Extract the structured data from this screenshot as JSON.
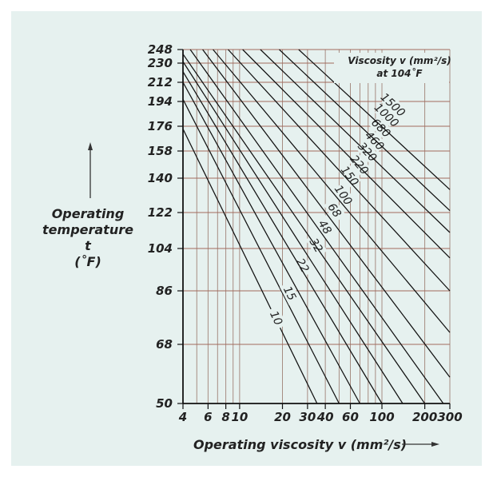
{
  "chart_data": {
    "type": "line",
    "title": "",
    "xlabel": "Operating viscosity v (mm²/s)",
    "ylabel_lines": [
      "Operating",
      "temperature",
      "t",
      "(˚F)"
    ],
    "legend_title_lines": [
      "Viscosity v (mm²/s)",
      "at 104˚F"
    ],
    "x_scale": "log",
    "xlim": [
      4,
      300
    ],
    "ylim": [
      50,
      248
    ],
    "x_ticks": [
      4,
      6,
      8,
      10,
      20,
      30,
      40,
      60,
      100,
      200,
      300
    ],
    "x_tick_labels": [
      "4",
      "6",
      "8",
      "10",
      "20",
      "30",
      "40",
      "60",
      "100",
      "200",
      "300"
    ],
    "y_ticks": [
      50,
      68,
      86,
      104,
      122,
      140,
      158,
      176,
      194,
      212,
      230,
      248
    ],
    "y_tick_labels": [
      "50",
      "68",
      "86",
      "104",
      "122",
      "140",
      "158",
      "176",
      "194",
      "212",
      "230",
      "248"
    ],
    "grid": true,
    "series": [
      {
        "name": "10",
        "points": [
          [
            4,
            174
          ],
          [
            35,
            50
          ]
        ]
      },
      {
        "name": "15",
        "points": [
          [
            4,
            196
          ],
          [
            50,
            50
          ]
        ]
      },
      {
        "name": "22",
        "points": [
          [
            4,
            212
          ],
          [
            70,
            50
          ]
        ]
      },
      {
        "name": "32",
        "points": [
          [
            4,
            222
          ],
          [
            100,
            50
          ]
        ]
      },
      {
        "name": "48",
        "points": [
          [
            4,
            232
          ],
          [
            140,
            50
          ]
        ]
      },
      {
        "name": "68",
        "points": [
          [
            4,
            242
          ],
          [
            200,
            50
          ]
        ]
      },
      {
        "name": "100",
        "points": [
          [
            4.5,
            248
          ],
          [
            270,
            50
          ]
        ]
      },
      {
        "name": "150",
        "points": [
          [
            5.5,
            248
          ],
          [
            300,
            58
          ]
        ]
      },
      {
        "name": "220",
        "points": [
          [
            6.5,
            248
          ],
          [
            300,
            72
          ]
        ]
      },
      {
        "name": "320",
        "points": [
          [
            8.3,
            248
          ],
          [
            300,
            86
          ]
        ]
      },
      {
        "name": "460",
        "points": [
          [
            10.5,
            248
          ],
          [
            300,
            100
          ]
        ]
      },
      {
        "name": "680",
        "points": [
          [
            14,
            248
          ],
          [
            300,
            112
          ]
        ]
      },
      {
        "name": "1000",
        "points": [
          [
            19,
            248
          ],
          [
            300,
            123
          ]
        ]
      },
      {
        "name": "1500",
        "points": [
          [
            26,
            248
          ],
          [
            300,
            134
          ]
        ]
      }
    ]
  }
}
